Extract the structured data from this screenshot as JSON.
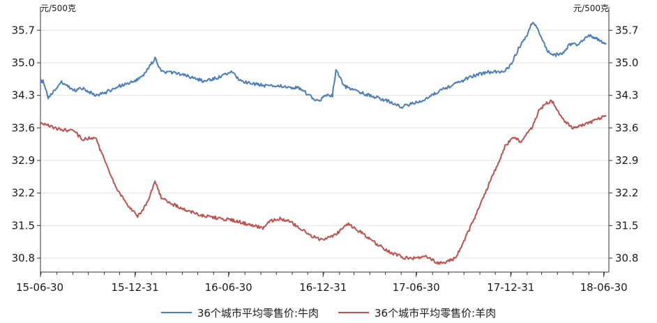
{
  "chart_data": {
    "type": "line",
    "unit_left": "元/500克",
    "unit_right": "元/500克",
    "x_tick_labels": [
      "15-06-30",
      "15-12-31",
      "16-06-30",
      "16-12-31",
      "17-06-30",
      "17-12-31",
      "18-06-30"
    ],
    "x_range": [
      "2015-06-30",
      "2018-07-10"
    ],
    "y_ticks": [
      30.8,
      31.5,
      32.2,
      32.9,
      33.6,
      34.3,
      35.0,
      35.7
    ],
    "y_tick_labels": [
      "30.8",
      "31.5",
      "32.2",
      "32.9",
      "33.6",
      "34.3",
      "35.0",
      "35.7"
    ],
    "ylim": [
      30.5,
      36.2
    ],
    "grid": true,
    "legend_position": "bottom",
    "series": [
      {
        "name": "36个城市平均零售价:牛肉",
        "color": "#4a7ebb",
        "x": [
          "2015-06-30",
          "2015-07-05",
          "2015-07-15",
          "2015-08-10",
          "2015-09-01",
          "2015-09-20",
          "2015-10-15",
          "2015-11-01",
          "2015-12-01",
          "2015-12-31",
          "2016-01-15",
          "2016-02-08",
          "2016-02-20",
          "2016-03-10",
          "2016-04-15",
          "2016-05-15",
          "2016-06-15",
          "2016-07-05",
          "2016-07-25",
          "2016-08-15",
          "2016-09-15",
          "2016-10-15",
          "2016-11-15",
          "2016-12-05",
          "2016-12-15",
          "2016-12-25",
          "2017-01-05",
          "2017-01-18",
          "2017-01-25",
          "2017-02-10",
          "2017-03-01",
          "2017-04-01",
          "2017-05-01",
          "2017-06-01",
          "2017-06-30",
          "2017-07-15",
          "2017-08-15",
          "2017-09-15",
          "2017-10-15",
          "2017-11-15",
          "2017-12-15",
          "2017-12-31",
          "2018-01-15",
          "2018-02-01",
          "2018-02-12",
          "2018-02-25",
          "2018-03-10",
          "2018-03-20",
          "2018-04-10",
          "2018-04-25",
          "2018-05-10",
          "2018-06-01",
          "2018-06-20",
          "2018-07-05"
        ],
        "values": [
          34.6,
          34.6,
          34.25,
          34.6,
          34.4,
          34.45,
          34.3,
          34.35,
          34.5,
          34.6,
          34.7,
          35.1,
          34.8,
          34.8,
          34.7,
          34.6,
          34.7,
          34.8,
          34.6,
          34.55,
          34.5,
          34.5,
          34.45,
          34.3,
          34.2,
          34.2,
          34.3,
          34.3,
          34.85,
          34.5,
          34.4,
          34.3,
          34.2,
          34.05,
          34.15,
          34.2,
          34.4,
          34.55,
          34.7,
          34.8,
          34.8,
          34.95,
          35.3,
          35.6,
          35.9,
          35.65,
          35.3,
          35.15,
          35.2,
          35.4,
          35.4,
          35.6,
          35.5,
          35.4
        ]
      },
      {
        "name": "36个城市平均零售价:羊肉",
        "color": "#c0504d",
        "x": [
          "2015-06-30",
          "2015-07-15",
          "2015-08-10",
          "2015-09-01",
          "2015-09-20",
          "2015-10-15",
          "2015-11-05",
          "2015-11-25",
          "2015-12-20",
          "2016-01-05",
          "2016-01-25",
          "2016-02-08",
          "2016-02-20",
          "2016-03-15",
          "2016-04-15",
          "2016-05-15",
          "2016-06-15",
          "2016-07-15",
          "2016-08-15",
          "2016-09-05",
          "2016-09-20",
          "2016-10-10",
          "2016-10-25",
          "2016-11-15",
          "2016-12-05",
          "2016-12-25",
          "2017-01-10",
          "2017-01-25",
          "2017-02-15",
          "2017-03-15",
          "2017-04-15",
          "2017-05-15",
          "2017-06-10",
          "2017-07-01",
          "2017-07-20",
          "2017-08-10",
          "2017-08-25",
          "2017-09-15",
          "2017-10-15",
          "2017-11-15",
          "2017-12-05",
          "2017-12-20",
          "2018-01-05",
          "2018-01-20",
          "2018-02-10",
          "2018-02-25",
          "2018-03-20",
          "2018-04-10",
          "2018-05-01",
          "2018-06-01",
          "2018-06-20",
          "2018-07-05"
        ],
        "values": [
          33.7,
          33.65,
          33.55,
          33.55,
          33.35,
          33.4,
          32.8,
          32.3,
          31.9,
          31.7,
          32.0,
          32.45,
          32.1,
          31.95,
          31.8,
          31.7,
          31.65,
          31.6,
          31.5,
          31.45,
          31.6,
          31.65,
          31.6,
          31.45,
          31.3,
          31.2,
          31.25,
          31.3,
          31.55,
          31.35,
          31.1,
          30.9,
          30.8,
          30.8,
          30.85,
          30.7,
          30.7,
          30.8,
          31.5,
          32.3,
          32.8,
          33.2,
          33.4,
          33.3,
          33.6,
          34.0,
          34.2,
          33.8,
          33.6,
          33.7,
          33.8,
          33.85
        ]
      }
    ]
  }
}
